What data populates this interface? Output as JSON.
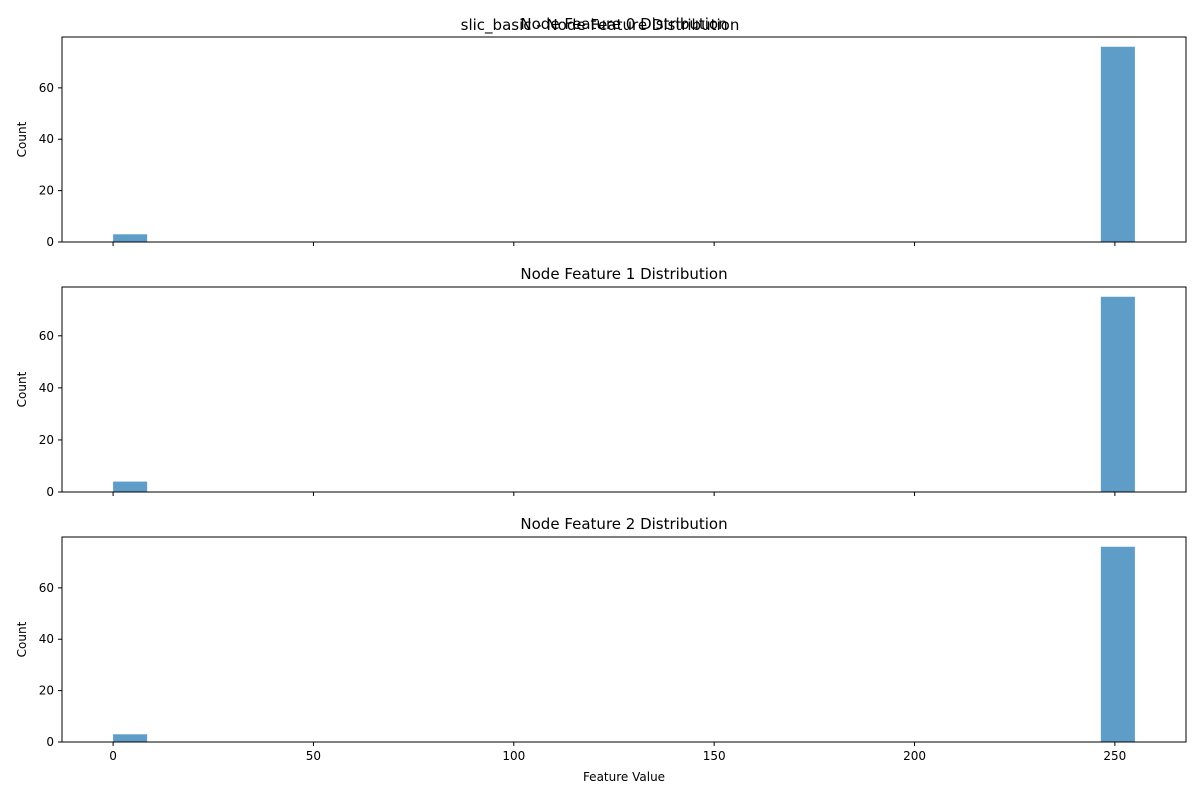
{
  "figure": {
    "suptitle": "slic_basic - Node Feature Distribution",
    "bar_color": "#5f9dc9"
  },
  "chart_data": [
    {
      "type": "bar",
      "title": "Node Feature 0 Distribution",
      "xlabel": "",
      "ylabel": "Count",
      "bins": [
        {
          "x0": 0,
          "x1": 8.5,
          "count": 3
        },
        {
          "x0": 246.5,
          "x1": 255,
          "count": 76
        }
      ],
      "xlim": [
        -12.75,
        267.75
      ],
      "ylim": [
        0,
        79.8
      ],
      "xticks": [
        0,
        50,
        100,
        150,
        200,
        250
      ],
      "xtick_labels": [],
      "yticks": [
        0,
        20,
        40,
        60
      ],
      "ytick_labels": [
        "0",
        "20",
        "40",
        "60"
      ],
      "grid": false
    },
    {
      "type": "bar",
      "title": "Node Feature 1 Distribution",
      "xlabel": "",
      "ylabel": "Count",
      "bins": [
        {
          "x0": 0,
          "x1": 8.5,
          "count": 4
        },
        {
          "x0": 246.5,
          "x1": 255,
          "count": 75
        }
      ],
      "xlim": [
        -12.75,
        267.75
      ],
      "ylim": [
        0,
        78.75
      ],
      "xticks": [
        0,
        50,
        100,
        150,
        200,
        250
      ],
      "xtick_labels": [],
      "yticks": [
        0,
        20,
        40,
        60
      ],
      "ytick_labels": [
        "0",
        "20",
        "40",
        "60"
      ],
      "grid": false
    },
    {
      "type": "bar",
      "title": "Node Feature 2 Distribution",
      "xlabel": "Feature Value",
      "ylabel": "Count",
      "bins": [
        {
          "x0": 0,
          "x1": 8.5,
          "count": 3
        },
        {
          "x0": 246.5,
          "x1": 255,
          "count": 76
        }
      ],
      "xlim": [
        -12.75,
        267.75
      ],
      "ylim": [
        0,
        79.8
      ],
      "xticks": [
        0,
        50,
        100,
        150,
        200,
        250
      ],
      "xtick_labels": [
        "0",
        "50",
        "100",
        "150",
        "200",
        "250"
      ],
      "yticks": [
        0,
        20,
        40,
        60
      ],
      "ytick_labels": [
        "0",
        "20",
        "40",
        "60"
      ],
      "grid": false
    }
  ]
}
